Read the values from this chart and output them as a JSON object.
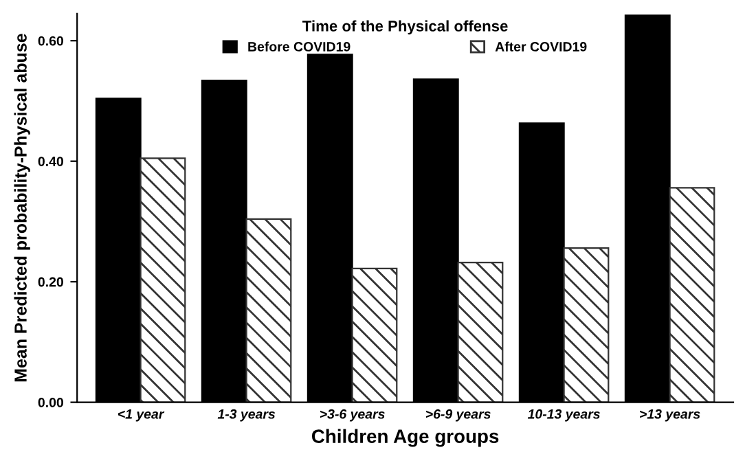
{
  "chart_data": {
    "type": "bar",
    "xlabel": "Children Age groups",
    "ylabel": "Mean Predicted probability-Physical abuse",
    "legend_title": "Time of the Physical offense",
    "categories": [
      "<1 year",
      "1-3 years",
      ">3-6 years",
      ">6-9 years",
      "10-13 years",
      ">13 years"
    ],
    "series": [
      {
        "name": "Before COVID19",
        "color": "#000000",
        "values": [
          0.504,
          0.534,
          0.577,
          0.536,
          0.463,
          0.642
        ]
      },
      {
        "name": "After COVID19",
        "color": "#333333",
        "values": [
          0.405,
          0.304,
          0.222,
          0.232,
          0.256,
          0.356
        ]
      }
    ],
    "ylim": [
      0,
      0.645
    ],
    "yticks": [
      {
        "value": 0,
        "label": "0.00"
      },
      {
        "value": 0.2,
        "label": "0.20"
      },
      {
        "value": 0.4,
        "label": "0.40"
      },
      {
        "value": 0.6,
        "label": "0.60"
      }
    ],
    "grid": false,
    "legend": "top"
  }
}
